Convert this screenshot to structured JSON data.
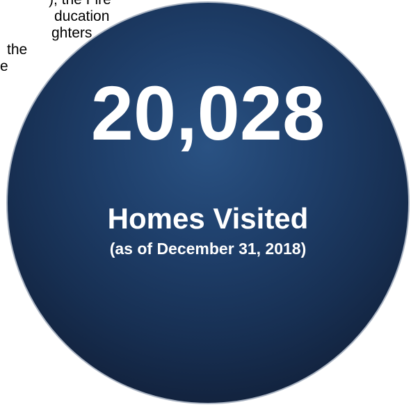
{
  "background_text": {
    "lines": [
      "), the Fire",
      "ducation",
      "ghters",
      "the",
      "e"
    ]
  },
  "stat": {
    "number": "20,028",
    "label": "Homes Visited",
    "subtitle": "(as of December 31, 2018)"
  },
  "colors": {
    "circle_center": "#2a5283",
    "circle_edge": "#0c1628",
    "circle_border": "#a9b3c2",
    "text": "#ffffff"
  }
}
